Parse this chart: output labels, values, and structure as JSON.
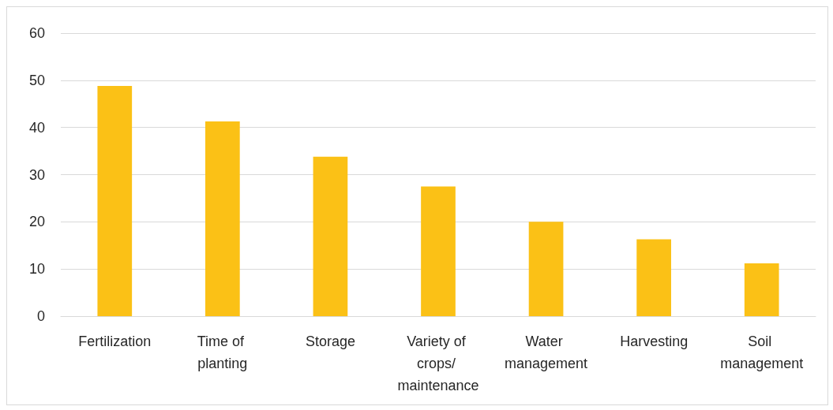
{
  "chart_data": {
    "type": "bar",
    "categories": [
      "Fertilization",
      "Time of planting",
      "Storage",
      "Variety of crops/ maintenance",
      "Water management",
      "Harvesting",
      "Soil management"
    ],
    "values": [
      48.8,
      41.3,
      33.8,
      27.5,
      20,
      16.3,
      11.2
    ],
    "color": "#fbc116",
    "ylim": [
      0,
      60
    ],
    "yticks": [
      0,
      10,
      20,
      30,
      40,
      50,
      60
    ],
    "grid": "y"
  }
}
